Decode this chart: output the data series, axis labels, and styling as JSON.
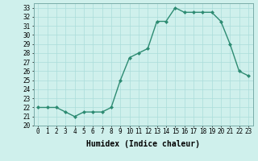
{
  "x": [
    0,
    1,
    2,
    3,
    4,
    5,
    6,
    7,
    8,
    9,
    10,
    11,
    12,
    13,
    14,
    15,
    16,
    17,
    18,
    19,
    20,
    21,
    22,
    23
  ],
  "y": [
    22,
    22,
    22,
    21.5,
    21,
    21.5,
    21.5,
    21.5,
    22,
    25,
    27.5,
    28,
    28.5,
    31.5,
    31.5,
    33,
    32.5,
    32.5,
    32.5,
    32.5,
    31.5,
    29,
    26,
    25.5
  ],
  "line_color": "#2d8b72",
  "marker": "D",
  "marker_size": 2,
  "bg_color": "#cff0ec",
  "grid_color": "#aaddda",
  "xlabel": "Humidex (Indice chaleur)",
  "xlim": [
    -0.5,
    23.5
  ],
  "ylim": [
    20,
    33.5
  ],
  "yticks": [
    20,
    21,
    22,
    23,
    24,
    25,
    26,
    27,
    28,
    29,
    30,
    31,
    32,
    33
  ],
  "xticks": [
    0,
    1,
    2,
    3,
    4,
    5,
    6,
    7,
    8,
    9,
    10,
    11,
    12,
    13,
    14,
    15,
    16,
    17,
    18,
    19,
    20,
    21,
    22,
    23
  ],
  "xlabel_fontsize": 7,
  "tick_fontsize": 5.5,
  "linewidth": 1.0
}
